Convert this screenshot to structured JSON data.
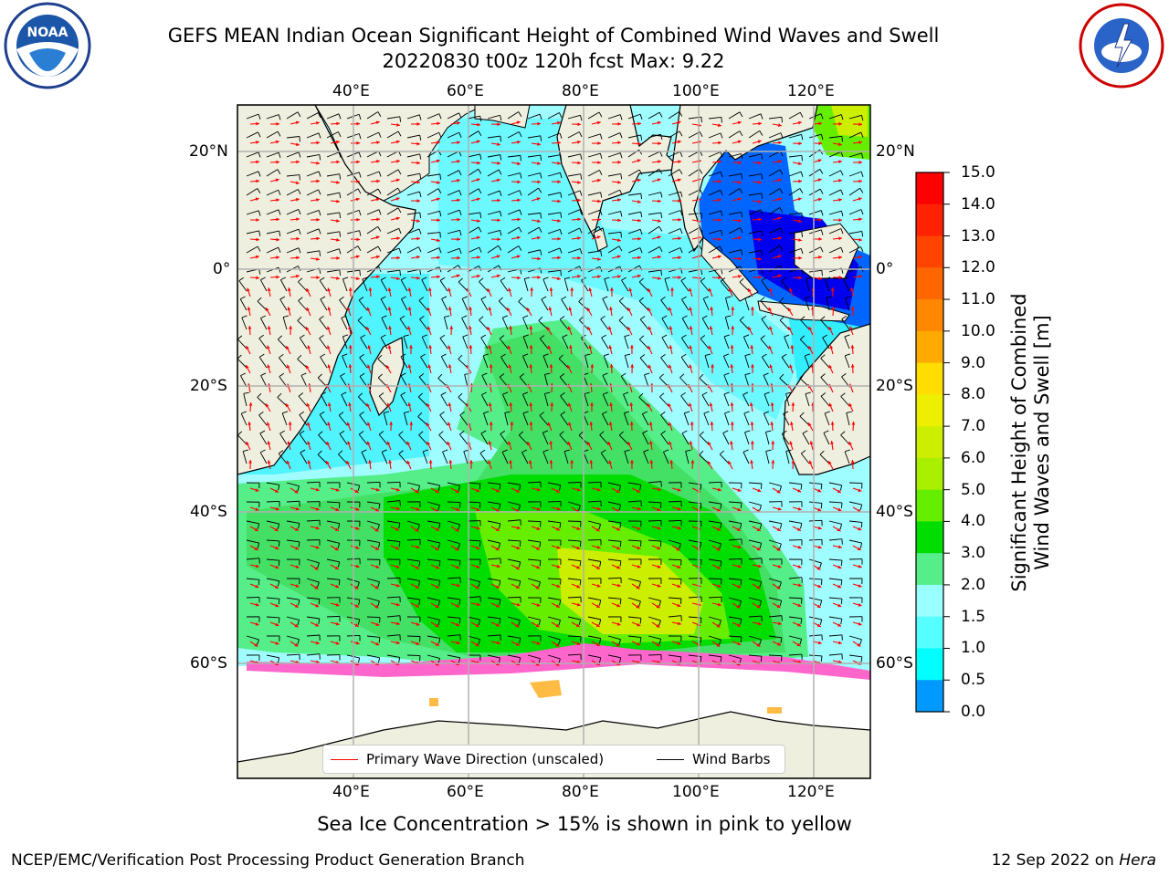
{
  "title_line1": "GEFS MEAN Indian Ocean Significant Height of Combined Wind Waves and Swell",
  "title_line2": "20220830 t00z 120h fcst   Max: 9.22",
  "logos": {
    "left": "noaa-logo",
    "right": "national-weather-service-logo"
  },
  "lon_ticks": [
    "40°E",
    "60°E",
    "80°E",
    "100°E",
    "120°E"
  ],
  "lat_ticks": [
    "20°N",
    "0°",
    "20°S",
    "40°S",
    "60°S"
  ],
  "colorbar": {
    "label_line1": "Significant Height of Combined",
    "label_line2": "Wind Waves and Swell [m]",
    "ticks": [
      "15.0",
      "14.0",
      "13.0",
      "12.0",
      "11.0",
      "10.0",
      "9.0",
      "8.0",
      "7.0",
      "6.0",
      "5.0",
      "4.0",
      "3.0",
      "2.0",
      "1.5",
      "1.0",
      "0.5",
      "0.0"
    ],
    "colors_top_to_bottom": [
      "#ff0000",
      "#ff2200",
      "#ff4400",
      "#ff6600",
      "#ff8800",
      "#ffaa00",
      "#ffdd00",
      "#eeee00",
      "#ccee00",
      "#aaee00",
      "#66ee00",
      "#00dd00",
      "#55ee88",
      "#99ffff",
      "#55ffff",
      "#00ffff",
      "#0099ff",
      "#0000ff"
    ]
  },
  "legend": {
    "wave_label": "Primary Wave Direction (unscaled)",
    "wave_color": "#ff0000",
    "wind_label": "Wind Barbs",
    "wind_color": "#000000"
  },
  "ice_note": "Sea Ice Concentration > 15% is shown in pink to yellow",
  "footer_left": "NCEP/EMC/Verification Post Processing Product Generation Branch",
  "footer_date": "12 Sep 2022 on",
  "footer_host": "Hera",
  "colors": {
    "land": "#efefdf",
    "coast": "#000000",
    "grid": "#b0b0b0",
    "ice_pink": "#ff66cc",
    "ice_orange": "#ffbb44"
  }
}
